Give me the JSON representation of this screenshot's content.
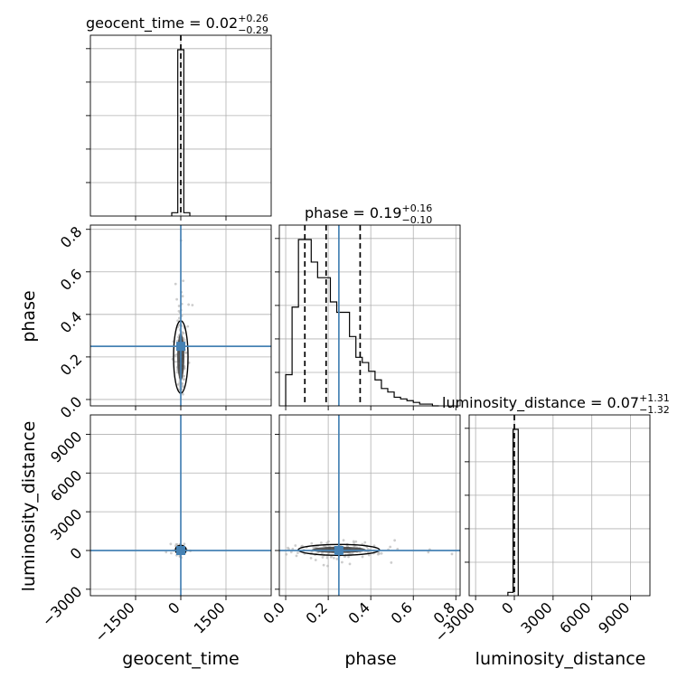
{
  "chart_data": {
    "type": "corner",
    "truth_color": "#4682b4",
    "parameters": [
      {
        "name": "geocent_time",
        "label": "geocent_time",
        "title_main": "geocent_time = 0.02",
        "title_sup": "+0.26",
        "title_sub": "−0.29",
        "range": [
          -3000,
          3000
        ],
        "ticks": [
          -1500,
          0,
          1500
        ],
        "tick_labels": [
          "−1500",
          "0",
          "1500"
        ],
        "truth": 0,
        "quantiles": [
          0.02
        ]
      },
      {
        "name": "phase",
        "label": "phase",
        "title_main": "phase = 0.19",
        "title_sup": "+0.16",
        "title_sub": "−0.10",
        "range": [
          -0.03,
          0.82
        ],
        "ticks": [
          0.0,
          0.2,
          0.4,
          0.6,
          0.8
        ],
        "tick_labels": [
          "0.0",
          "0.2",
          "0.4",
          "0.6",
          "0.8"
        ],
        "truth": 0.25,
        "quantiles": [
          0.09,
          0.19,
          0.35
        ]
      },
      {
        "name": "luminosity_distance",
        "label": "luminosity_distance",
        "title_main": "luminosity_distance = 0.07",
        "title_sup": "+1.31",
        "title_sub": "−1.32",
        "range": [
          -3500,
          10500
        ],
        "ticks": [
          -3000,
          0,
          3000,
          6000,
          9000
        ],
        "tick_labels": [
          "−3000",
          "0",
          "3000",
          "6000",
          "9000"
        ],
        "truth": 0,
        "quantiles": [
          0.07
        ]
      }
    ],
    "histograms": {
      "geocent_time": {
        "bins": [
          -300,
          -100,
          100,
          300
        ],
        "counts": [
          0.02,
          1.0,
          0.02
        ]
      },
      "phase": {
        "bins": [
          0.0,
          0.03,
          0.06,
          0.09,
          0.12,
          0.15,
          0.18,
          0.21,
          0.24,
          0.27,
          0.3,
          0.33,
          0.36,
          0.39,
          0.42,
          0.45,
          0.48,
          0.51,
          0.54,
          0.57,
          0.6,
          0.63,
          0.66,
          0.69,
          0.72
        ],
        "counts": [
          0.18,
          0.57,
          0.96,
          0.96,
          0.83,
          0.74,
          0.74,
          0.6,
          0.54,
          0.54,
          0.4,
          0.28,
          0.25,
          0.2,
          0.15,
          0.1,
          0.08,
          0.05,
          0.04,
          0.03,
          0.02,
          0.01,
          0.01,
          0.0
        ]
      },
      "luminosity_distance": {
        "bins": [
          -500,
          -100,
          300
        ],
        "counts": [
          0.02,
          1.0
        ]
      }
    }
  }
}
